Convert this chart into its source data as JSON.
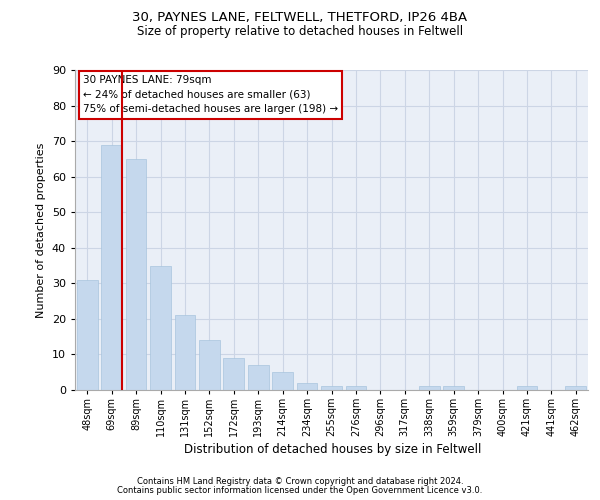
{
  "title_line1": "30, PAYNES LANE, FELTWELL, THETFORD, IP26 4BA",
  "title_line2": "Size of property relative to detached houses in Feltwell",
  "xlabel": "Distribution of detached houses by size in Feltwell",
  "ylabel": "Number of detached properties",
  "categories": [
    "48sqm",
    "69sqm",
    "89sqm",
    "110sqm",
    "131sqm",
    "152sqm",
    "172sqm",
    "193sqm",
    "214sqm",
    "234sqm",
    "255sqm",
    "276sqm",
    "296sqm",
    "317sqm",
    "338sqm",
    "359sqm",
    "379sqm",
    "400sqm",
    "421sqm",
    "441sqm",
    "462sqm"
  ],
  "values": [
    31,
    69,
    65,
    35,
    21,
    14,
    9,
    7,
    5,
    2,
    1,
    1,
    0,
    0,
    1,
    1,
    0,
    0,
    1,
    0,
    1
  ],
  "bar_color": "#c5d8ed",
  "bar_edge_color": "#a8c4dd",
  "vline_x_index": 1.425,
  "vline_color": "#cc0000",
  "annotation_text": "30 PAYNES LANE: 79sqm\n← 24% of detached houses are smaller (63)\n75% of semi-detached houses are larger (198) →",
  "annotation_box_facecolor": "white",
  "annotation_box_edgecolor": "#cc0000",
  "ylim": [
    0,
    90
  ],
  "yticks": [
    0,
    10,
    20,
    30,
    40,
    50,
    60,
    70,
    80,
    90
  ],
  "grid_color": "#ccd5e5",
  "bg_color": "#eaeff7",
  "footer_line1": "Contains HM Land Registry data © Crown copyright and database right 2024.",
  "footer_line2": "Contains public sector information licensed under the Open Government Licence v3.0."
}
